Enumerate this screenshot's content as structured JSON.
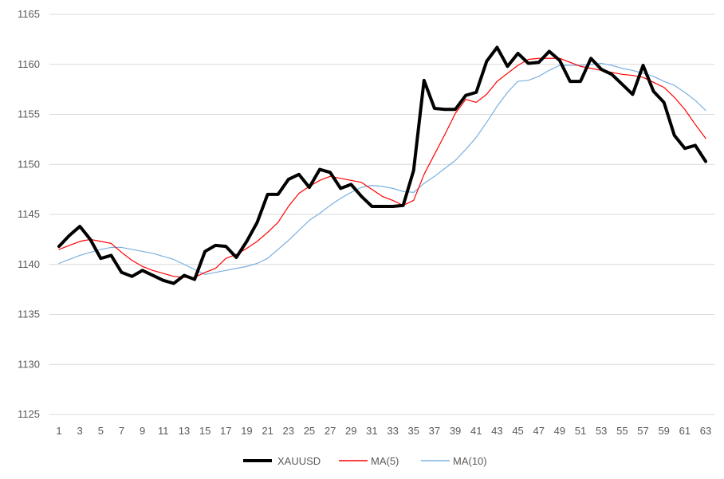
{
  "chart_data": {
    "type": "line",
    "title": "",
    "xlabel": "",
    "ylabel": "",
    "ylim": [
      1125,
      1165
    ],
    "yticks": [
      1125,
      1130,
      1135,
      1140,
      1145,
      1150,
      1155,
      1160,
      1165
    ],
    "xticks": [
      1,
      3,
      5,
      7,
      9,
      11,
      13,
      15,
      17,
      19,
      21,
      23,
      25,
      27,
      29,
      31,
      33,
      35,
      37,
      39,
      41,
      43,
      45,
      47,
      49,
      51,
      53,
      55,
      57,
      59,
      61,
      63
    ],
    "grid": "horizontal",
    "legend_position": "bottom",
    "x": [
      1,
      2,
      3,
      4,
      5,
      6,
      7,
      8,
      9,
      10,
      11,
      12,
      13,
      14,
      15,
      16,
      17,
      18,
      19,
      20,
      21,
      22,
      23,
      24,
      25,
      26,
      27,
      28,
      29,
      30,
      31,
      32,
      33,
      34,
      35,
      36,
      37,
      38,
      39,
      40,
      41,
      42,
      43,
      44,
      45,
      46,
      47,
      48,
      49,
      50,
      51,
      52,
      53,
      54,
      55,
      56,
      57,
      58,
      59,
      60,
      61,
      62,
      63
    ],
    "series": [
      {
        "name": "XAUUSD",
        "color": "#000000",
        "values": [
          1141.8,
          1142.9,
          1143.8,
          1142.5,
          1140.6,
          1140.9,
          1139.2,
          1138.8,
          1139.4,
          1138.9,
          1138.4,
          1138.1,
          1138.9,
          1138.5,
          1141.3,
          1141.9,
          1141.8,
          1140.7,
          1142.3,
          1144.2,
          1147.0,
          1147.0,
          1148.5,
          1149.0,
          1147.7,
          1149.5,
          1149.2,
          1147.6,
          1148.0,
          1146.8,
          1145.8,
          1145.8,
          1145.8,
          1145.9,
          1149.4,
          1158.4,
          1155.6,
          1155.5,
          1155.5,
          1156.9,
          1157.2,
          1160.3,
          1161.7,
          1159.8,
          1161.1,
          1160.1,
          1160.2,
          1161.3,
          1160.4,
          1158.3,
          1158.3,
          1160.6,
          1159.5,
          1159.0,
          1158.0,
          1157.0,
          1159.9,
          1157.3,
          1156.2,
          1152.9,
          1151.6,
          1151.9,
          1150.3
        ]
      },
      {
        "name": "MA(5)",
        "color": "#ff0000",
        "values": [
          1141.5,
          1141.9,
          1142.3,
          1142.5,
          1142.3,
          1142.1,
          1141.2,
          1140.4,
          1139.8,
          1139.4,
          1139.1,
          1138.8,
          1138.7,
          1138.7,
          1139.2,
          1139.6,
          1140.6,
          1141.0,
          1141.6,
          1142.3,
          1143.2,
          1144.2,
          1145.8,
          1147.1,
          1147.8,
          1148.4,
          1148.8,
          1148.6,
          1148.4,
          1148.2,
          1147.5,
          1146.8,
          1146.4,
          1145.9,
          1146.4,
          1149.0,
          1151.0,
          1153.0,
          1155.1,
          1156.5,
          1156.2,
          1157.0,
          1158.3,
          1159.1,
          1159.9,
          1160.5,
          1160.6,
          1160.6,
          1160.6,
          1160.2,
          1159.8,
          1159.6,
          1159.4,
          1159.2,
          1159.0,
          1158.9,
          1158.7,
          1158.2,
          1157.7,
          1156.7,
          1155.5,
          1154.0,
          1152.6
        ]
      },
      {
        "name": "MA(10)",
        "color": "#7ab0e0",
        "values": [
          1140.1,
          1140.5,
          1140.9,
          1141.2,
          1141.5,
          1141.7,
          1141.7,
          1141.5,
          1141.3,
          1141.1,
          1140.8,
          1140.5,
          1140.0,
          1139.5,
          1139.0,
          1139.2,
          1139.4,
          1139.6,
          1139.8,
          1140.1,
          1140.6,
          1141.5,
          1142.4,
          1143.4,
          1144.4,
          1145.1,
          1145.9,
          1146.6,
          1147.2,
          1147.7,
          1147.9,
          1147.8,
          1147.6,
          1147.3,
          1147.2,
          1148.1,
          1148.8,
          1149.6,
          1150.4,
          1151.5,
          1152.7,
          1154.2,
          1155.8,
          1157.2,
          1158.3,
          1158.4,
          1158.8,
          1159.4,
          1159.9,
          1159.9,
          1159.9,
          1160.0,
          1160.1,
          1159.9,
          1159.6,
          1159.4,
          1159.1,
          1158.8,
          1158.3,
          1157.9,
          1157.2,
          1156.4,
          1155.4
        ]
      }
    ]
  }
}
